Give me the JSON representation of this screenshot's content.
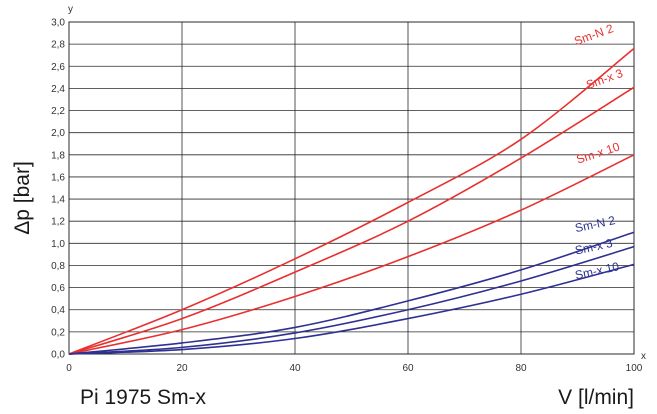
{
  "chart_data": {
    "type": "line",
    "title": "",
    "caption": "Pi 1975 Sm-x",
    "xlabel": "V [l/min]",
    "ylabel": "Δp [bar]",
    "x_axis_letter": "x",
    "y_axis_letter": "y",
    "xlim": [
      0,
      100
    ],
    "ylim": [
      0,
      3.0
    ],
    "x_ticks": [
      "0",
      "20",
      "40",
      "60",
      "80",
      "100"
    ],
    "y_ticks": [
      "0,0",
      "0,2",
      "0,4",
      "0,6",
      "0,8",
      "1,0",
      "1,2",
      "1,4",
      "1,6",
      "1,8",
      "2,0",
      "2,2",
      "2,4",
      "2,6",
      "2,8",
      "3,0"
    ],
    "grid": true,
    "colors": {
      "red": "#e8302e",
      "blue": "#2e3192"
    },
    "series": [
      {
        "name": "Sm-N 2",
        "color": "#e8302e",
        "x": [
          0,
          20,
          40,
          60,
          80,
          100
        ],
        "values": [
          0,
          0.4,
          0.86,
          1.37,
          1.94,
          2.76
        ]
      },
      {
        "name": "Sm-x 3",
        "color": "#e8302e",
        "x": [
          0,
          20,
          40,
          60,
          80,
          100
        ],
        "values": [
          0,
          0.32,
          0.74,
          1.2,
          1.77,
          2.41
        ]
      },
      {
        "name": "Sm-x 10",
        "color": "#e8302e",
        "x": [
          0,
          20,
          40,
          60,
          80,
          100
        ],
        "values": [
          0,
          0.22,
          0.52,
          0.88,
          1.3,
          1.8
        ]
      },
      {
        "name": "Sm-N 2",
        "color": "#2e3192",
        "x": [
          0,
          20,
          40,
          60,
          80,
          100
        ],
        "values": [
          0,
          0.1,
          0.24,
          0.48,
          0.76,
          1.1
        ]
      },
      {
        "name": "Sm-x 3",
        "color": "#2e3192",
        "x": [
          0,
          20,
          40,
          60,
          80,
          100
        ],
        "values": [
          0,
          0.06,
          0.19,
          0.4,
          0.66,
          0.97
        ]
      },
      {
        "name": "Sm-x 10",
        "color": "#2e3192",
        "x": [
          0,
          20,
          40,
          60,
          80,
          100
        ],
        "values": [
          0,
          0.04,
          0.14,
          0.32,
          0.54,
          0.81
        ]
      }
    ]
  }
}
